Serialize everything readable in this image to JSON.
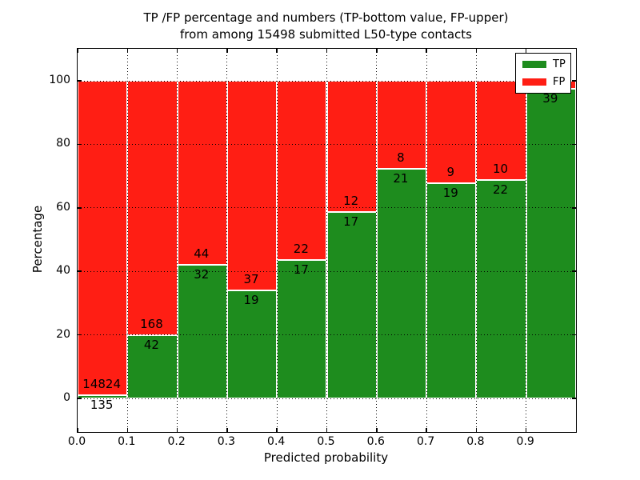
{
  "title": {
    "line1": "TP /FP percentage and numbers (TP-bottom value, FP-upper)",
    "line2": "from among 15498 submitted L50-type contacts"
  },
  "chart_data": {
    "type": "bar",
    "stacked": true,
    "title": "TP /FP percentage and numbers (TP-bottom value, FP-upper) from among 15498 submitted L50-type contacts",
    "xlabel": "Predicted probability",
    "ylabel": "Percentage",
    "xlim": [
      0.0,
      1.0
    ],
    "ylim": [
      -10.6,
      110.1
    ],
    "bin_width": 0.1,
    "bin_starts": [
      0.0,
      0.1,
      0.2,
      0.3,
      0.4,
      0.5,
      0.6,
      0.7,
      0.8,
      0.9
    ],
    "xtick_labels": [
      "0.0",
      "0.1",
      "0.2",
      "0.3",
      "0.4",
      "0.5",
      "0.6",
      "0.7",
      "0.8",
      "0.9"
    ],
    "ytick_values": [
      0,
      20,
      40,
      60,
      80,
      100
    ],
    "grid": true,
    "series": [
      {
        "name": "TP",
        "color": "#1e8c1e",
        "counts": [
          135,
          42,
          32,
          19,
          17,
          17,
          21,
          19,
          22,
          39
        ],
        "count_labels": [
          "135",
          "42",
          "32",
          "19",
          "17",
          "17",
          "21",
          "19",
          "22",
          "39"
        ],
        "pct": [
          0.9,
          20.0,
          42.11,
          33.93,
          43.59,
          58.62,
          72.41,
          67.86,
          68.75,
          97.5
        ]
      },
      {
        "name": "FP",
        "color": "#ff1e14",
        "counts": [
          14824,
          168,
          44,
          37,
          22,
          12,
          8,
          9,
          10,
          null
        ],
        "count_labels": [
          "14824",
          "168",
          "44",
          "37",
          "22",
          "12",
          "8",
          "9",
          "10",
          ""
        ],
        "pct": [
          99.1,
          80.0,
          57.89,
          66.07,
          56.41,
          41.38,
          27.59,
          32.14,
          31.25,
          2.5
        ]
      }
    ],
    "legend": {
      "position": "upper right",
      "entries": [
        "TP",
        "FP"
      ]
    },
    "note": "FP count label of last bar occluded by legend; TP labels sit below the green/red boundary, FP labels above it"
  }
}
